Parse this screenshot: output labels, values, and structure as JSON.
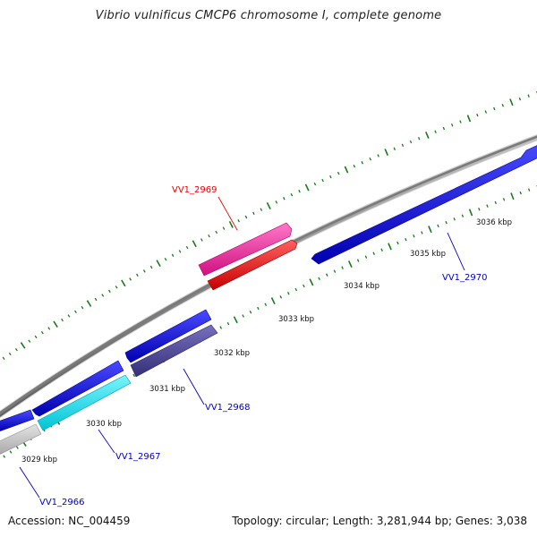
{
  "title": "Vibrio vulnificus CMCP6 chromosome I, complete genome",
  "footer": {
    "accession": "Accession: NC_004459",
    "topology": "Topology: circular; Length: 3,281,944 bp; Genes: 3,038"
  },
  "scale": {
    "tick_labels": [
      "3029 kbp",
      "3030 kbp",
      "3031 kbp",
      "3032 kbp",
      "3033 kbp",
      "3034 kbp",
      "3035 kbp",
      "3036 kbp"
    ]
  },
  "gene_labels": [
    {
      "id": "VV1_2966",
      "color": "#0000cc"
    },
    {
      "id": "VV1_2967",
      "color": "#0000cc"
    },
    {
      "id": "VV1_2968",
      "color": "#0000cc"
    },
    {
      "id": "VV1_2969",
      "color": "#ee0000"
    },
    {
      "id": "VV1_2970",
      "color": "#0000cc"
    }
  ],
  "colors": {
    "backbone": "#8c8c8c",
    "forward_gene": "#0000e6",
    "reverse_gene": "#0000e6",
    "cyan_gene": "#00e0ee",
    "slate_gene": "#4a4494",
    "gray_gene": "#c4c4c4",
    "pink_gene": "#f0289a",
    "red_gene": "#ff0000",
    "tick_color": "#1a7a1a"
  }
}
